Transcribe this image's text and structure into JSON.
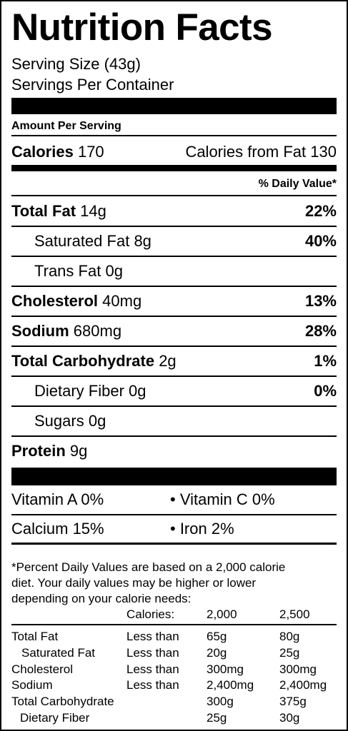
{
  "title": "Nutrition Facts",
  "serving_size": "Serving Size (43g)",
  "servings_per_container": "Servings Per Container",
  "amount_per_serving": "Amount Per Serving",
  "calories": {
    "label": "Calories",
    "value": 170
  },
  "calories_from_fat": {
    "label": "Calories from Fat",
    "value": 130
  },
  "daily_value_header": "% Daily Value*",
  "nutrients": [
    {
      "name": "Total Fat",
      "amount": "14g",
      "dv": "22%"
    },
    {
      "name": "Saturated Fat",
      "amount": "8g",
      "dv": "40%"
    },
    {
      "name": "Trans Fat",
      "amount": "0g"
    },
    {
      "name": "Cholesterol",
      "amount": "40mg",
      "dv": "13%"
    },
    {
      "name": "Sodium",
      "amount": "680mg",
      "dv": "28%"
    },
    {
      "name": "Total Carbohydrate",
      "amount": "2g",
      "dv": "1%"
    },
    {
      "name": "Dietary Fiber",
      "amount": "0g",
      "dv": "0%"
    },
    {
      "name": "Sugars",
      "amount": "0g"
    },
    {
      "name": "Protein",
      "amount": "9g"
    }
  ],
  "vitamins": [
    [
      "Vitamin A 0%",
      "• Vitamin C 0%"
    ],
    [
      "Calcium 15%",
      "• Iron 2%"
    ]
  ],
  "footnote": [
    "*Percent Daily Values are based on a 2,000 calorie",
    "diet. Your daily values may be higher or lower",
    "depending on your calorie needs:"
  ],
  "reference_table": {
    "header": [
      "Calories:",
      "2,000",
      "2,500"
    ],
    "rows": [
      {
        "label": "Total Fat",
        "limit": "Less than",
        "amount_2000": "65g",
        "amount_2500": "80g"
      },
      {
        "label": "Saturated Fat",
        "limit": "Less than",
        "amount_2000": "20g",
        "amount_2500": "25g"
      },
      {
        "label": "Cholesterol",
        "limit": "Less than",
        "amount_2000": "300mg",
        "amount_2500": "300mg"
      },
      {
        "label": "Sodium",
        "limit": "Less than",
        "amount_2000": "2,400mg",
        "amount_2500": "2,400mg"
      },
      {
        "label": "Total Carbohydrate",
        "amount_2000": "300g",
        "amount_2500": "375g"
      },
      {
        "label": "Dietary Fiber",
        "amount_2000": "25g",
        "amount_2500": "30g"
      }
    ]
  }
}
